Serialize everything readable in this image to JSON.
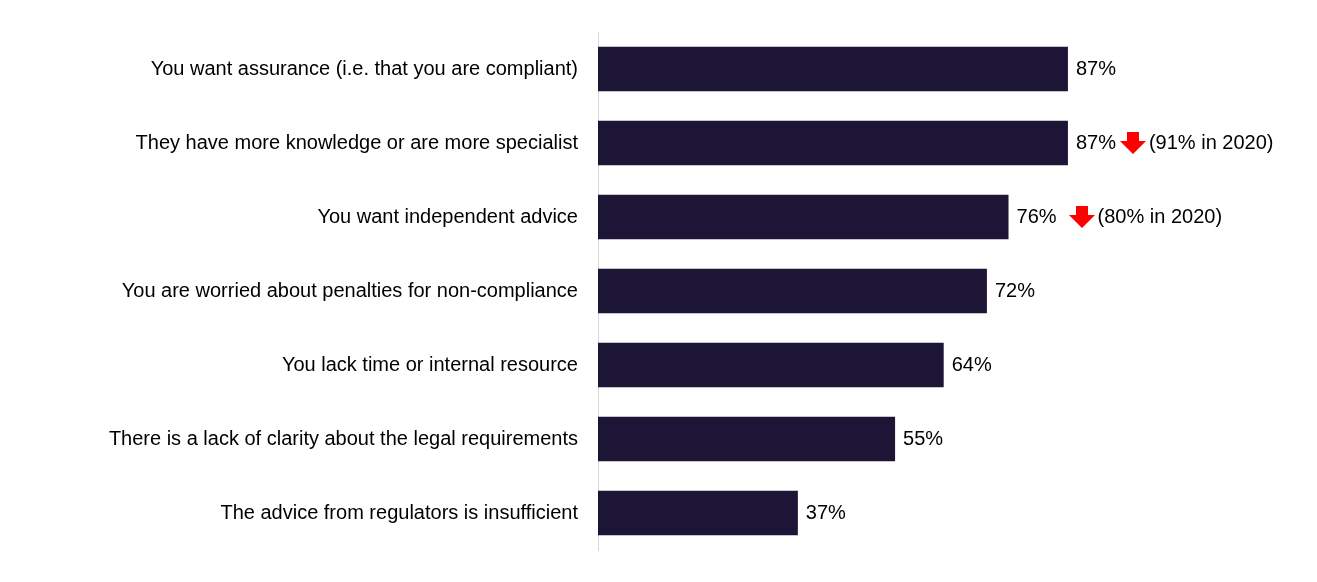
{
  "chart_data": {
    "type": "bar",
    "orientation": "horizontal",
    "categories": [
      "You want assurance (i.e. that you are compliant)",
      "They have more knowledge or are more specialist",
      "You want independent advice",
      "You are worried about penalties for non-compliance",
      "You lack time or internal resource",
      "There is a lack of clarity about the legal requirements",
      "The advice from regulators is insufficient"
    ],
    "values": [
      87,
      87,
      76,
      72,
      64,
      55,
      37
    ],
    "value_labels": [
      "87%",
      "87%",
      "76%",
      "72%",
      "64%",
      "55%",
      "37%"
    ],
    "color": "#1c1535",
    "annotations": [
      "(91% in 2020)",
      "(80% in 2020)"
    ],
    "grid": false,
    "legend": false
  }
}
